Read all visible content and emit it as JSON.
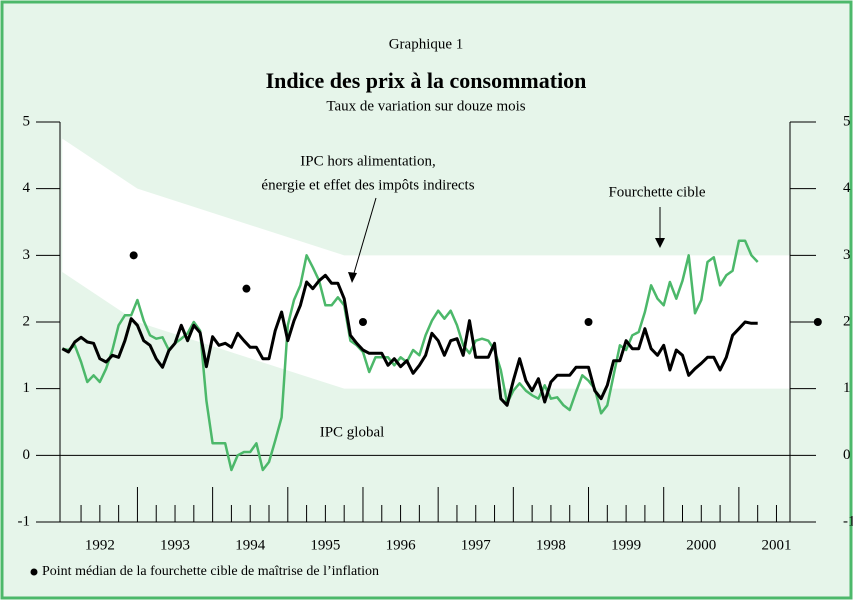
{
  "chart_data": {
    "type": "line",
    "figure_label": "Graphique 1",
    "title": "Indice des prix à la consommation",
    "subtitle": "Taux de variation sur douze mois",
    "xlim": [
      1991.97,
      2001.68
    ],
    "ylim": [
      -1,
      5
    ],
    "yticks": [
      -1,
      0,
      1,
      2,
      3,
      4,
      5
    ],
    "xticks": [
      {
        "value": 1992.5,
        "label": "1992"
      },
      {
        "value": 1993.5,
        "label": "1993"
      },
      {
        "value": 1994.5,
        "label": "1994"
      },
      {
        "value": 1995.5,
        "label": "1995"
      },
      {
        "value": 1996.5,
        "label": "1996"
      },
      {
        "value": 1997.5,
        "label": "1997"
      },
      {
        "value": 1998.5,
        "label": "1998"
      },
      {
        "value": 1999.5,
        "label": "1999"
      },
      {
        "value": 2000.5,
        "label": "2000"
      },
      {
        "value": 2001.5,
        "label": "2001"
      }
    ],
    "x_major_ticks": [
      1993,
      1994,
      1995,
      1996,
      1997,
      1998,
      1999,
      2000,
      2001
    ],
    "x_minor_ticks": [
      1992.25,
      1992.5,
      1992.75,
      1993.25,
      1993.5,
      1993.75,
      1994.25,
      1994.5,
      1994.75,
      1995.25,
      1995.5,
      1995.75,
      1996.25,
      1996.5,
      1996.75,
      1997.25,
      1997.5,
      1997.75,
      1998.25,
      1998.5,
      1998.75,
      1999.25,
      1999.5,
      1999.75,
      2000.25,
      2000.5,
      2000.75,
      2001.25,
      2001.5
    ],
    "zero_line": 0,
    "target_band": {
      "name": "Fourchette cible",
      "color": "#ffffff",
      "x": [
        1992,
        1993,
        1995.75,
        2001.68
      ],
      "upper": [
        4.75,
        4,
        3,
        3
      ],
      "lower": [
        2.75,
        2,
        1,
        1
      ]
    },
    "midpoints": {
      "name": "Point médian de la fourchette cible de maîtrise de l’inflation",
      "color": "#000000",
      "x": [
        1992.95,
        1994.45,
        1996.0,
        1999.0,
        2002.05
      ],
      "values": [
        3,
        2.5,
        2,
        2,
        2
      ]
    },
    "core_label": [
      "IPC hors alimentation,",
      "énergie et effet des impôts indirects"
    ],
    "x": [
      1992,
      1992.083,
      1992.167,
      1992.25,
      1992.333,
      1992.417,
      1992.5,
      1992.583,
      1992.667,
      1992.75,
      1992.833,
      1992.917,
      1993,
      1993.083,
      1993.167,
      1993.25,
      1993.333,
      1993.417,
      1993.5,
      1993.583,
      1993.667,
      1993.75,
      1993.833,
      1993.917,
      1994,
      1994.083,
      1994.167,
      1994.25,
      1994.333,
      1994.417,
      1994.5,
      1994.583,
      1994.667,
      1994.75,
      1994.833,
      1994.917,
      1995,
      1995.083,
      1995.167,
      1995.25,
      1995.333,
      1995.417,
      1995.5,
      1995.583,
      1995.667,
      1995.75,
      1995.833,
      1995.917,
      1996,
      1996.083,
      1996.167,
      1996.25,
      1996.333,
      1996.417,
      1996.5,
      1996.583,
      1996.667,
      1996.75,
      1996.833,
      1996.917,
      1997,
      1997.083,
      1997.167,
      1997.25,
      1997.333,
      1997.417,
      1997.5,
      1997.583,
      1997.667,
      1997.75,
      1997.833,
      1997.917,
      1998,
      1998.083,
      1998.167,
      1998.25,
      1998.333,
      1998.417,
      1998.5,
      1998.583,
      1998.667,
      1998.75,
      1998.833,
      1998.917,
      1999,
      1999.083,
      1999.167,
      1999.25,
      1999.333,
      1999.417,
      1999.5,
      1999.583,
      1999.667,
      1999.75,
      1999.833,
      1999.917,
      2000,
      2000.083,
      2000.167,
      2000.25,
      2000.333,
      2000.417,
      2000.5,
      2000.583,
      2000.667,
      2000.75,
      2000.833,
      2000.917,
      2001,
      2001.083,
      2001.167,
      2001.25
    ],
    "series": [
      {
        "name": "IPC global",
        "color": "#4cb86a",
        "values": [
          1.6,
          1.58,
          1.65,
          1.4,
          1.1,
          1.2,
          1.1,
          1.3,
          1.58,
          1.95,
          2.1,
          2.1,
          2.33,
          2.02,
          1.8,
          1.75,
          1.77,
          1.58,
          1.68,
          1.75,
          1.83,
          2.0,
          1.87,
          0.82,
          0.18,
          0.18,
          0.18,
          -0.22,
          0,
          0.05,
          0.05,
          0.18,
          -0.22,
          -0.1,
          0.22,
          0.57,
          1.95,
          2.33,
          2.55,
          3.0,
          2.82,
          2.62,
          2.25,
          2.25,
          2.37,
          2.25,
          1.72,
          1.65,
          1.55,
          1.25,
          1.47,
          1.47,
          1.47,
          1.35,
          1.47,
          1.4,
          1.58,
          1.5,
          1.8,
          2.02,
          2.17,
          2.05,
          2.17,
          1.95,
          1.65,
          1.53,
          1.72,
          1.75,
          1.72,
          1.58,
          1.28,
          0.78,
          0.97,
          1.08,
          0.97,
          0.9,
          0.85,
          1.05,
          0.85,
          0.87,
          0.75,
          0.68,
          0.95,
          1.2,
          1.12,
          1.0,
          0.63,
          0.75,
          1.2,
          1.65,
          1.58,
          1.8,
          1.85,
          2.15,
          2.55,
          2.35,
          2.25,
          2.6,
          2.35,
          2.62,
          3.0,
          2.13,
          2.33,
          2.9,
          2.97,
          2.55,
          2.7,
          2.77,
          3.22,
          3.22,
          3.0,
          2.9
        ]
      },
      {
        "color": "#000000",
        "values": [
          1.6,
          1.55,
          1.7,
          1.77,
          1.7,
          1.68,
          1.45,
          1.4,
          1.5,
          1.47,
          1.72,
          2.05,
          1.95,
          1.72,
          1.65,
          1.45,
          1.32,
          1.57,
          1.68,
          1.95,
          1.72,
          1.95,
          1.84,
          1.33,
          1.78,
          1.65,
          1.68,
          1.62,
          1.83,
          1.72,
          1.62,
          1.62,
          1.45,
          1.45,
          1.87,
          2.15,
          1.72,
          2.02,
          2.25,
          2.6,
          2.5,
          2.62,
          2.7,
          2.58,
          2.58,
          2.35,
          1.8,
          1.68,
          1.58,
          1.53,
          1.53,
          1.53,
          1.35,
          1.45,
          1.33,
          1.42,
          1.23,
          1.35,
          1.5,
          1.83,
          1.72,
          1.5,
          1.72,
          1.75,
          1.5,
          2.02,
          1.47,
          1.47,
          1.47,
          1.68,
          0.85,
          0.75,
          1.12,
          1.45,
          1.12,
          0.97,
          1.15,
          0.8,
          1.1,
          1.2,
          1.2,
          1.2,
          1.32,
          1.32,
          1.32,
          0.97,
          0.85,
          1.05,
          1.42,
          1.42,
          1.72,
          1.6,
          1.6,
          1.9,
          1.6,
          1.5,
          1.65,
          1.28,
          1.58,
          1.5,
          1.2,
          1.3,
          1.38,
          1.47,
          1.47,
          1.28,
          1.47,
          1.8,
          1.9,
          2.0,
          1.98,
          1.98
        ]
      }
    ]
  }
}
